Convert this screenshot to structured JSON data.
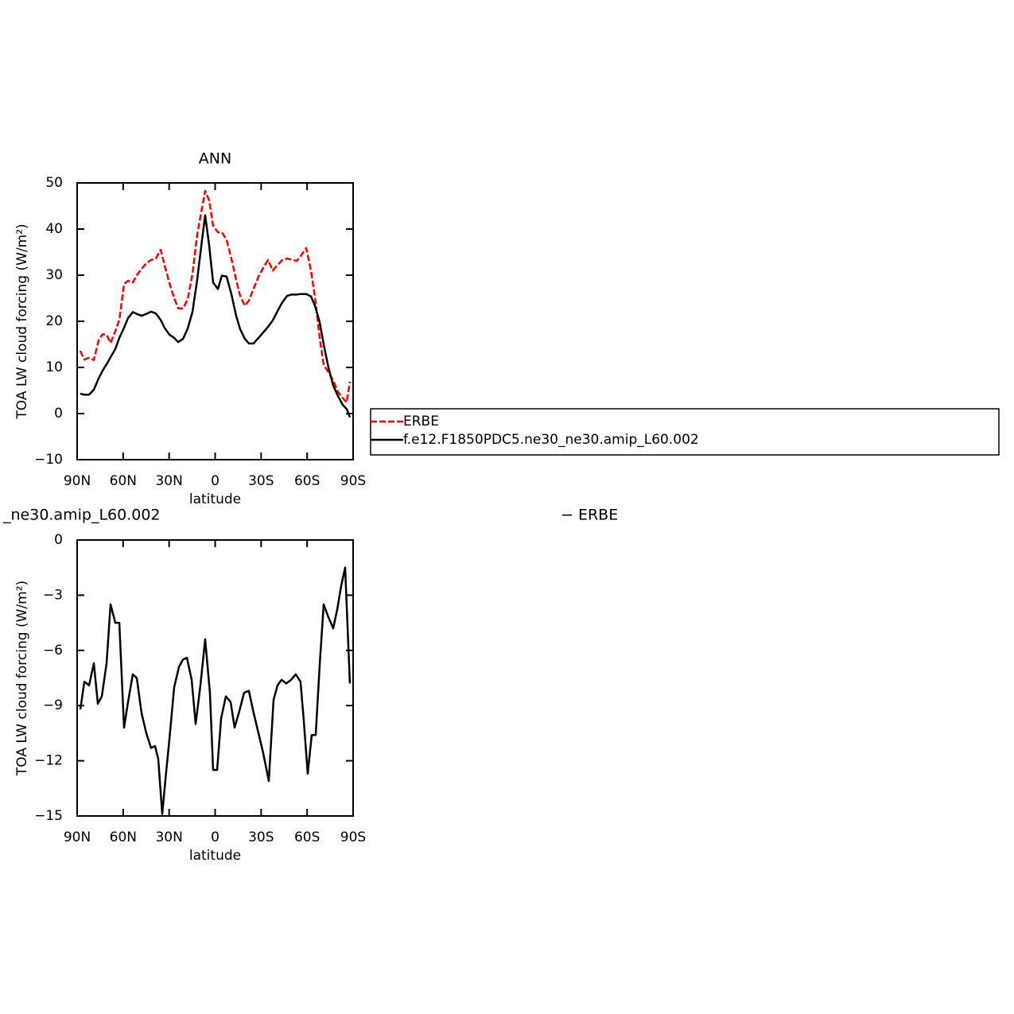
{
  "chart_data": [
    {
      "type": "line",
      "title": "ANN",
      "xlabel": "latitude",
      "ylabel": "TOA LW cloud forcing (W/m²)",
      "xlim": [
        90,
        -90
      ],
      "xticks": [
        {
          "value": 90,
          "label": "90N"
        },
        {
          "value": 60,
          "label": "60N"
        },
        {
          "value": 30,
          "label": "30N"
        },
        0,
        {
          "value": -30,
          "label": "30S"
        },
        {
          "value": -60,
          "label": "60S"
        },
        {
          "value": -90,
          "label": "90S"
        }
      ],
      "ylim": [
        -10,
        50
      ],
      "yticks": [
        {
          "value": -10,
          "label": "−10"
        },
        0,
        10,
        20,
        30,
        40,
        50
      ],
      "legend": "right",
      "x": [
        88,
        85.3,
        82.2,
        79.1,
        76,
        73.4,
        70.8,
        68.2,
        65.1,
        62.5,
        59.4,
        56.8,
        53.7,
        51.1,
        47.9,
        44.9,
        41.8,
        38.7,
        35.5,
        33,
        29.8,
        26.7,
        24.1,
        20.9,
        17.9,
        14.8,
        11.7,
        8.6,
        6.5,
        3.9,
        1.3,
        -1.8,
        -4.4,
        -7.5,
        -10.6,
        -13.7,
        -16.3,
        -19.4,
        -22,
        -25.1,
        -28.3,
        -31.4,
        -34.5,
        -37.6,
        -40.7,
        -43.8,
        -46.9,
        -50,
        -53.2,
        -55.7,
        -59.4,
        -62.5,
        -65.1,
        -68.2,
        -70.8,
        -73.9,
        -77,
        -80.1,
        -83.2,
        -85.8,
        -87.9
      ],
      "series": [
        {
          "name": "ERBE",
          "color": "#ff0000",
          "linestyle": "dashed",
          "values": [
            13.6,
            11.7,
            12.1,
            11.6,
            15.9,
            17.2,
            17.1,
            15.3,
            17.9,
            20.3,
            28.1,
            28.8,
            28.4,
            30,
            31.4,
            32.6,
            33.3,
            33.6,
            35.5,
            32.2,
            28.3,
            25,
            22.8,
            22.8,
            24.8,
            30.2,
            38.8,
            44.5,
            48.3,
            46.2,
            40.7,
            39.3,
            39.3,
            37.6,
            33.6,
            29,
            25.5,
            23.4,
            24.5,
            27.1,
            29.7,
            31.6,
            33.3,
            31,
            32.2,
            33.3,
            33.6,
            33.4,
            33.1,
            34.1,
            35.9,
            31,
            25.3,
            16.4,
            10.5,
            9,
            7.2,
            4.7,
            3.4,
            2.4,
            6.9
          ]
        },
        {
          "name": "f.e12.F1850PDC5.ne30_ne30.amip_L60.002",
          "color": "#000000",
          "linestyle": "solid",
          "values": [
            4.3,
            4.1,
            4.1,
            5.2,
            7.6,
            9.3,
            10.7,
            12.2,
            14,
            16.4,
            18.6,
            20.7,
            22,
            21.6,
            21.2,
            21.6,
            22.1,
            21.7,
            20.3,
            18.6,
            17.1,
            16.4,
            15.5,
            16.2,
            18.4,
            22,
            29,
            37.5,
            43,
            36.5,
            28.4,
            27,
            29.9,
            29.7,
            25.9,
            21.2,
            18.3,
            16.2,
            15.2,
            15.2,
            16.4,
            17.6,
            18.8,
            20.2,
            22.2,
            24.1,
            25.5,
            25.8,
            25.8,
            25.9,
            25.9,
            25.4,
            23.4,
            19.8,
            15,
            10,
            6.1,
            3.8,
            1.9,
            1,
            -0.8
          ]
        }
      ]
    },
    {
      "type": "line",
      "title_left": "_ne30.amip_L60.002",
      "title_right": "−  ERBE",
      "xlabel": "latitude",
      "ylabel": "TOA LW cloud forcing (W/m²)",
      "xlim": [
        90,
        -90
      ],
      "xticks": [
        {
          "value": 90,
          "label": "90N"
        },
        {
          "value": 60,
          "label": "60N"
        },
        {
          "value": 30,
          "label": "30N"
        },
        0,
        {
          "value": -30,
          "label": "30S"
        },
        {
          "value": -60,
          "label": "60S"
        },
        {
          "value": -90,
          "label": "90S"
        }
      ],
      "ylim": [
        -15,
        0
      ],
      "yticks": [
        {
          "value": -15,
          "label": "−15"
        },
        {
          "value": -12,
          "label": "−12"
        },
        {
          "value": -9,
          "label": "−9"
        },
        {
          "value": -6,
          "label": "−6"
        },
        {
          "value": -3,
          "label": "−3"
        },
        0
      ],
      "color": "#000000",
      "x": [
        87.9,
        85.3,
        82.2,
        79.1,
        76.5,
        73.9,
        70.8,
        68.2,
        65.1,
        62.5,
        59.4,
        56.8,
        53.7,
        51.1,
        48,
        44.9,
        41.8,
        39.2,
        37.1,
        34.5,
        32.5,
        29.9,
        26.7,
        23.6,
        21,
        18.4,
        15.3,
        12.7,
        9.6,
        6.5,
        3.4,
        1.3,
        -1.3,
        -3.9,
        -7,
        -10.1,
        -12.7,
        -15.8,
        -18.9,
        -22,
        -25.1,
        -28.3,
        -31.4,
        -35,
        -38.1,
        -40.7,
        -43.3,
        -46.4,
        -49.5,
        -52.6,
        -55.7,
        -57.8,
        -60.4,
        -63,
        -65.6,
        -68.2,
        -70.8,
        -73.9,
        -77,
        -79.6,
        -82.2,
        -84.8,
        -87.9
      ],
      "values": [
        -9.2,
        -7.7,
        -7.9,
        -6.7,
        -8.9,
        -8.5,
        -6.7,
        -3.5,
        -4.5,
        -4.5,
        -10.2,
        -8.8,
        -7.3,
        -7.5,
        -9.4,
        -10.5,
        -11.3,
        -11.2,
        -11.9,
        -14.9,
        -13.1,
        -10.9,
        -8,
        -6.9,
        -6.5,
        -6.4,
        -7.6,
        -10,
        -7.9,
        -5.4,
        -8.3,
        -12.5,
        -12.5,
        -9.7,
        -8.5,
        -8.8,
        -10.2,
        -9.3,
        -8.3,
        -8.2,
        -9.4,
        -10.5,
        -11.6,
        -13.1,
        -8.7,
        -7.9,
        -7.6,
        -7.8,
        -7.6,
        -7.3,
        -7.7,
        -9.8,
        -12.7,
        -10.6,
        -10.6,
        -6.8,
        -3.5,
        -4.2,
        -4.8,
        -3.8,
        -2.5,
        -1.5,
        -7.8
      ]
    }
  ]
}
